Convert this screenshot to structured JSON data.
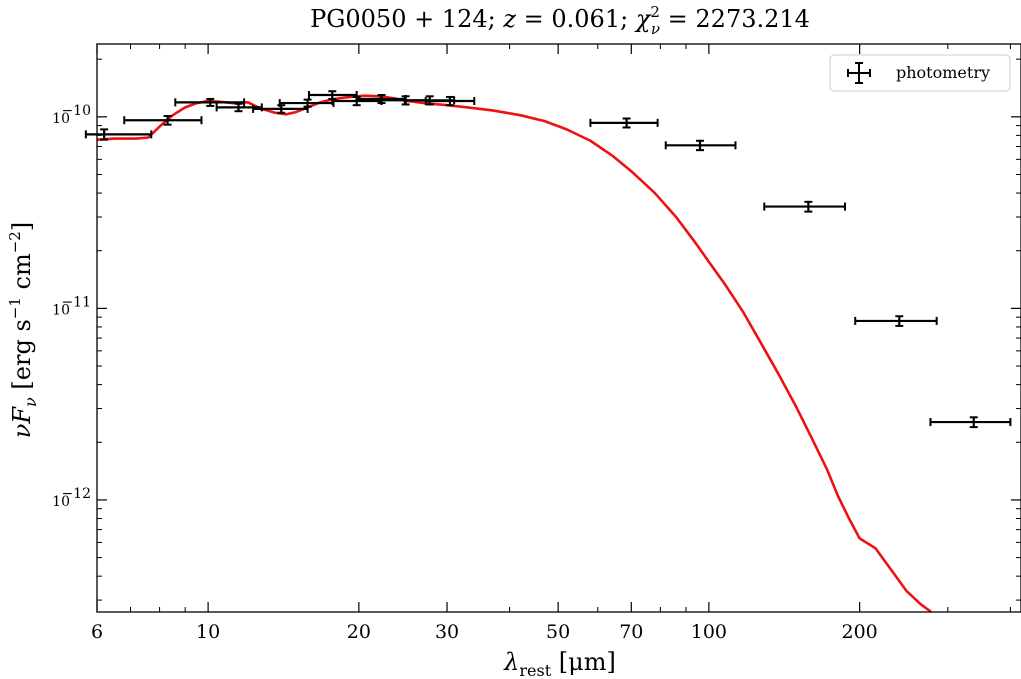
{
  "chart_data": {
    "type": "scatter",
    "title": "PG0050 + 124; z = 0.061; χ²ν = 2273.214",
    "title_parts": {
      "obj": "PG0050 + 124; ",
      "z_sym": "z",
      "z_val": " = 0.061; ",
      "chi": "χ",
      "chi_sup": "2",
      "chi_sub": "ν",
      "chi_val": " = 2273.214"
    },
    "xlabel": "λrest [μm]",
    "xlabel_parts": {
      "lambda": "λ",
      "sub": "rest",
      "unit": " [μm]"
    },
    "ylabel": "νFν [erg s⁻¹ cm⁻²]",
    "ylabel_parts": {
      "nu": "νF",
      "sub": "ν",
      "unit1": " [erg s",
      "exp1": "−1",
      "unit2": " cm",
      "exp2": "−2",
      "unit3": "]"
    },
    "x_scale": "log",
    "y_scale": "log",
    "xlim": [
      6,
      420
    ],
    "ylim": [
      2.6e-13,
      2.4e-10
    ],
    "x_ticks": [
      {
        "value": 6,
        "label": "6"
      },
      {
        "value": 10,
        "label": "10"
      },
      {
        "value": 20,
        "label": "20"
      },
      {
        "value": 30,
        "label": "30"
      },
      {
        "value": 50,
        "label": "50"
      },
      {
        "value": 70,
        "label": "70"
      },
      {
        "value": 100,
        "label": "100"
      },
      {
        "value": 200,
        "label": "200"
      }
    ],
    "y_ticks": [
      {
        "value": 1e-12,
        "label_base": "10",
        "label_exp": "−12"
      },
      {
        "value": 1e-11,
        "label_base": "10",
        "label_exp": "−11"
      },
      {
        "value": 1e-10,
        "label_base": "10",
        "label_exp": "−10"
      }
    ],
    "legend": {
      "position": "top-right",
      "label": "photometry"
    },
    "series": [
      {
        "name": "photometry",
        "kind": "errorbar",
        "color": "#000000",
        "points": [
          {
            "x": 6.2,
            "y": 8.1e-11,
            "xerr": [
              5.7,
              7.7
            ],
            "yerr": [
              7.6e-11,
              8.6e-11
            ]
          },
          {
            "x": 8.3,
            "y": 9.6e-11,
            "xerr": [
              6.8,
              9.7
            ],
            "yerr": [
              9.1e-11,
              1.01e-10
            ]
          },
          {
            "x": 10.1,
            "y": 1.19e-10,
            "xerr": [
              8.6,
              11.8
            ],
            "yerr": [
              1.14e-10,
              1.24e-10
            ]
          },
          {
            "x": 11.5,
            "y": 1.12e-10,
            "xerr": [
              10.4,
              12.8
            ],
            "yerr": [
              1.07e-10,
              1.17e-10
            ]
          },
          {
            "x": 14.0,
            "y": 1.1e-10,
            "xerr": [
              12.3,
              15.8
            ],
            "yerr": [
              1.05e-10,
              1.15e-10
            ]
          },
          {
            "x": 15.8,
            "y": 1.18e-10,
            "xerr": [
              13.9,
              17.8
            ],
            "yerr": [
              1.13e-10,
              1.23e-10
            ]
          },
          {
            "x": 17.7,
            "y": 1.3e-10,
            "xerr": [
              15.9,
              19.8
            ],
            "yerr": [
              1.24e-10,
              1.36e-10
            ]
          },
          {
            "x": 19.8,
            "y": 1.21e-10,
            "xerr": [
              17.7,
              22.2
            ],
            "yerr": [
              1.15e-10,
              1.27e-10
            ]
          },
          {
            "x": 22.2,
            "y": 1.24e-10,
            "xerr": [
              19.8,
              24.8
            ],
            "yerr": [
              1.18e-10,
              1.3e-10
            ]
          },
          {
            "x": 24.8,
            "y": 1.22e-10,
            "xerr": [
              22.1,
              27.7
            ],
            "yerr": [
              1.16e-10,
              1.28e-10
            ]
          },
          {
            "x": 27.7,
            "y": 1.22e-10,
            "xerr": [
              24.7,
              31.0
            ],
            "yerr": [
              1.16e-10,
              1.28e-10
            ]
          },
          {
            "x": 30.4,
            "y": 1.21e-10,
            "xerr": [
              27.2,
              34.0
            ],
            "yerr": [
              1.15e-10,
              1.27e-10
            ]
          },
          {
            "x": 68.5,
            "y": 9.3e-11,
            "xerr": [
              58,
              79
            ],
            "yerr": [
              8.8e-11,
              9.8e-11
            ]
          },
          {
            "x": 96.0,
            "y": 7.1e-11,
            "xerr": [
              82,
              113
            ],
            "yerr": [
              6.7e-11,
              7.5e-11
            ]
          },
          {
            "x": 158,
            "y": 3.4e-11,
            "xerr": [
              129,
              187
            ],
            "yerr": [
              3.2e-11,
              3.6e-11
            ]
          },
          {
            "x": 240,
            "y": 8.6e-12,
            "xerr": [
              196,
              285
            ],
            "yerr": [
              8.1e-12,
              9.1e-12
            ]
          },
          {
            "x": 338,
            "y": 2.55e-12,
            "xerr": [
              277,
              400
            ],
            "yerr": [
              2.4e-12,
              2.7e-12
            ]
          }
        ]
      },
      {
        "name": "model",
        "kind": "line",
        "color": "#ee1111",
        "points": [
          [
            6,
            7.6e-11
          ],
          [
            6.5,
            7.7e-11
          ],
          [
            7.2,
            7.7e-11
          ],
          [
            7.6,
            7.8e-11
          ],
          [
            8.0,
            8.9e-11
          ],
          [
            8.5,
            1.02e-10
          ],
          [
            9.0,
            1.12e-10
          ],
          [
            9.5,
            1.18e-10
          ],
          [
            10.0,
            1.21e-10
          ],
          [
            10.5,
            1.2e-10
          ],
          [
            11.2,
            1.18e-10
          ],
          [
            12.0,
            1.19e-10
          ],
          [
            12.8,
            1.1e-10
          ],
          [
            13.6,
            1.05e-10
          ],
          [
            14.3,
            1.03e-10
          ],
          [
            15.0,
            1.06e-10
          ],
          [
            15.8,
            1.12e-10
          ],
          [
            16.6,
            1.18e-10
          ],
          [
            17.4,
            1.22e-10
          ],
          [
            18.3,
            1.25e-10
          ],
          [
            19.2,
            1.27e-10
          ],
          [
            20.5,
            1.29e-10
          ],
          [
            22.0,
            1.28e-10
          ],
          [
            23.5,
            1.25e-10
          ],
          [
            25.0,
            1.21e-10
          ],
          [
            27.0,
            1.18e-10
          ],
          [
            30.0,
            1.15e-10
          ],
          [
            33.0,
            1.12e-10
          ],
          [
            37.0,
            1.08e-10
          ],
          [
            42.0,
            1.02e-10
          ],
          [
            47.0,
            9.5e-11
          ],
          [
            52.0,
            8.6e-11
          ],
          [
            58.0,
            7.5e-11
          ],
          [
            64.0,
            6.3e-11
          ],
          [
            70.0,
            5.2e-11
          ],
          [
            78.0,
            4e-11
          ],
          [
            86.0,
            3e-11
          ],
          [
            94.0,
            2.2e-11
          ],
          [
            100.0,
            1.75e-11
          ],
          [
            108.0,
            1.32e-11
          ],
          [
            117.0,
            9.6e-12
          ],
          [
            127.0,
            6.6e-12
          ],
          [
            138.0,
            4.5e-12
          ],
          [
            150.0,
            3e-12
          ],
          [
            162.0,
            2e-12
          ],
          [
            172.0,
            1.45e-12
          ],
          [
            181.0,
            1.05e-12
          ],
          [
            190.0,
            8.1e-13
          ],
          [
            200.0,
            6.3e-13
          ],
          [
            215.0,
            5.6e-13
          ],
          [
            230.0,
            4.4e-13
          ],
          [
            248.0,
            3.35e-13
          ],
          [
            265.0,
            2.85e-13
          ],
          [
            278.0,
            2.6e-13
          ]
        ]
      }
    ]
  }
}
